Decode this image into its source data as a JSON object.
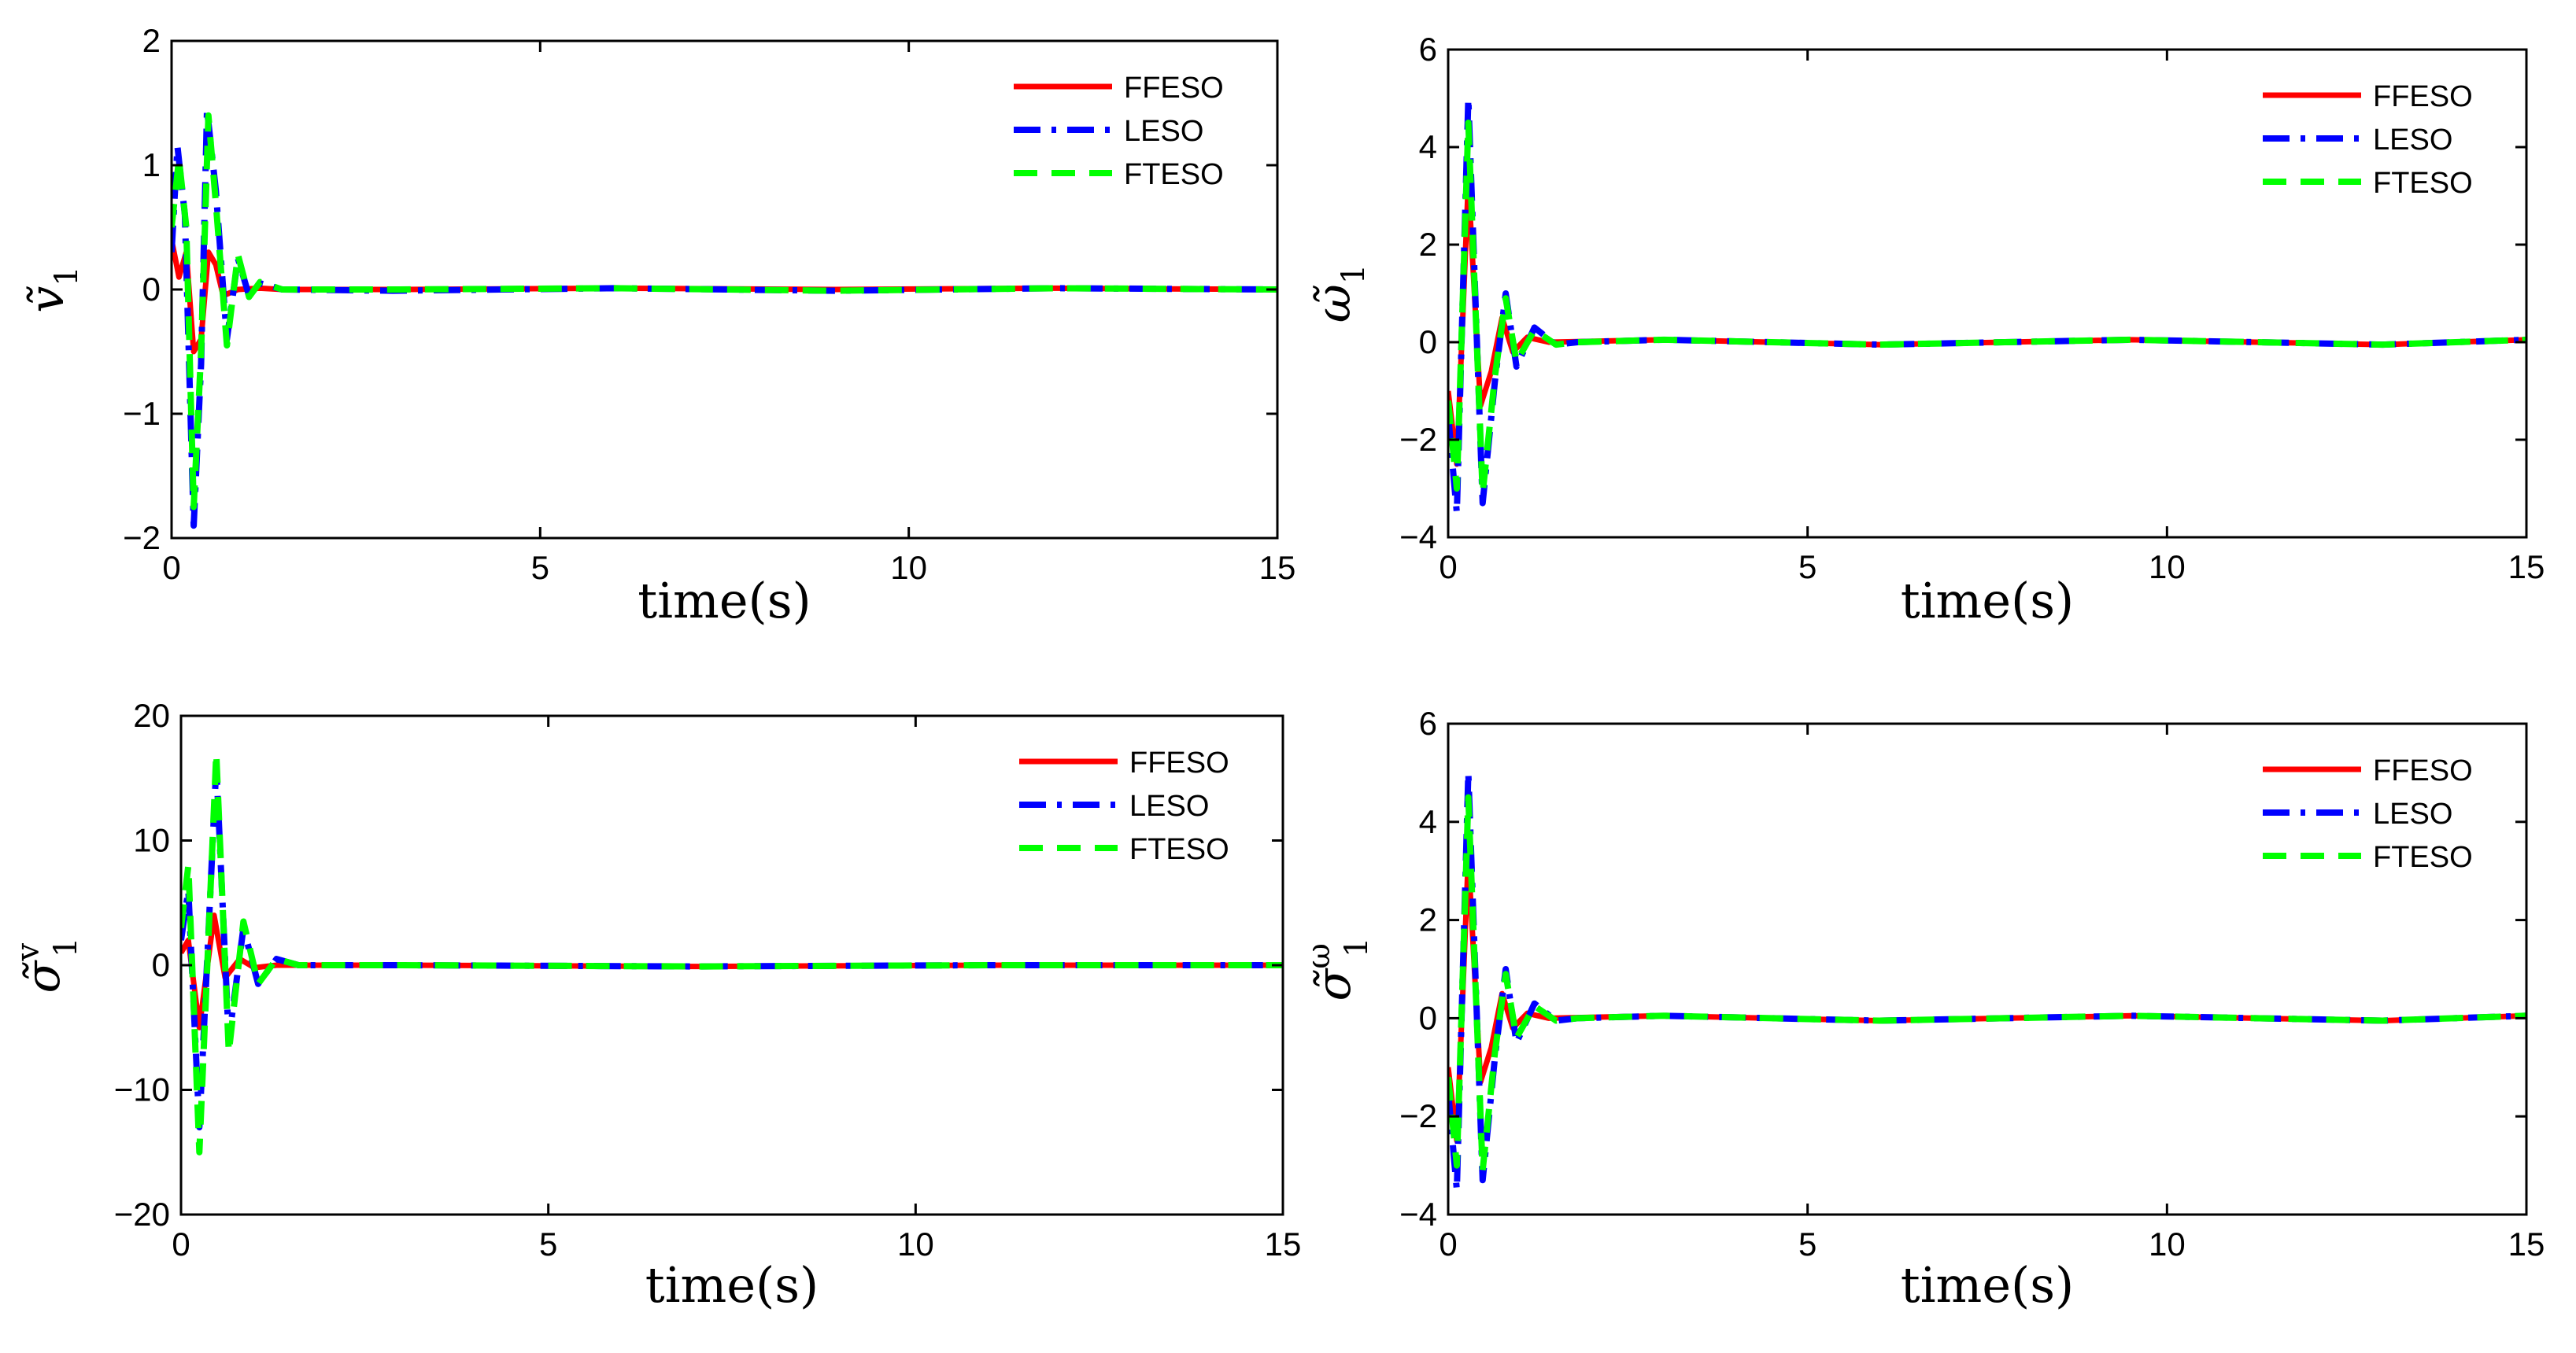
{
  "figure": {
    "description_text": ""
  },
  "colors": {
    "FFESO": "#ff0000",
    "LESO": "#0000ff",
    "FTESO": "#00ff00"
  },
  "chart_data": [
    {
      "type": "line",
      "id": "v1",
      "ylabel_symbol": "ṽ",
      "ylabel_sub": "1",
      "ylabel_sup": "",
      "xlabel": "time(s)",
      "xlim": [
        0,
        15
      ],
      "ylim": [
        -2,
        2
      ],
      "xticks": [
        0,
        5,
        10,
        15
      ],
      "yticks": [
        -2,
        -1,
        0,
        1,
        2
      ],
      "tick_labels_x": [
        "0",
        "5",
        "10",
        "15"
      ],
      "tick_labels_y": [
        "−2",
        "−1",
        "0",
        "1",
        "2"
      ],
      "series": [
        {
          "name": "FFESO",
          "points": [
            [
              0,
              0.4
            ],
            [
              0.1,
              0.1
            ],
            [
              0.2,
              0.3
            ],
            [
              0.3,
              -0.5
            ],
            [
              0.4,
              -0.4
            ],
            [
              0.5,
              0.3
            ],
            [
              0.6,
              0.2
            ],
            [
              0.7,
              -0.05
            ],
            [
              0.9,
              0.0
            ],
            [
              1.2,
              0.01
            ],
            [
              1.5,
              0
            ],
            [
              3,
              0
            ],
            [
              6,
              0.01
            ],
            [
              9,
              0
            ],
            [
              12,
              0.01
            ],
            [
              15,
              0
            ]
          ]
        },
        {
          "name": "LESO",
          "points": [
            [
              0,
              0.3
            ],
            [
              0.08,
              1.15
            ],
            [
              0.18,
              0.6
            ],
            [
              0.3,
              -1.9
            ],
            [
              0.4,
              -0.6
            ],
            [
              0.48,
              1.45
            ],
            [
              0.6,
              0.8
            ],
            [
              0.75,
              -0.4
            ],
            [
              0.9,
              0.25
            ],
            [
              1.05,
              -0.05
            ],
            [
              1.2,
              0.05
            ],
            [
              1.5,
              0
            ],
            [
              3,
              -0.01
            ],
            [
              6,
              0.01
            ],
            [
              9,
              -0.01
            ],
            [
              12,
              0.01
            ],
            [
              15,
              0
            ]
          ]
        },
        {
          "name": "FTESO",
          "points": [
            [
              0,
              0.5
            ],
            [
              0.1,
              1.05
            ],
            [
              0.2,
              0.5
            ],
            [
              0.3,
              -1.75
            ],
            [
              0.4,
              -0.5
            ],
            [
              0.5,
              1.4
            ],
            [
              0.6,
              0.7
            ],
            [
              0.75,
              -0.45
            ],
            [
              0.9,
              0.28
            ],
            [
              1.05,
              -0.06
            ],
            [
              1.2,
              0.06
            ],
            [
              1.5,
              0
            ],
            [
              3,
              0
            ],
            [
              6,
              0.01
            ],
            [
              9,
              -0.01
            ],
            [
              12,
              0.01
            ],
            [
              15,
              0
            ]
          ]
        }
      ],
      "legend": [
        "FFESO",
        "LESO",
        "FTESO"
      ],
      "legend_position": "top-right"
    },
    {
      "type": "line",
      "id": "w1",
      "ylabel_symbol": "ω̃",
      "ylabel_sub": "1",
      "ylabel_sup": "",
      "xlabel": "time(s)",
      "xlim": [
        0,
        15
      ],
      "ylim": [
        -4,
        6
      ],
      "xticks": [
        0,
        5,
        10,
        15
      ],
      "yticks": [
        -4,
        -2,
        0,
        2,
        4,
        6
      ],
      "tick_labels_x": [
        "0",
        "5",
        "10",
        "15"
      ],
      "tick_labels_y": [
        "−4",
        "−2",
        "0",
        "2",
        "4",
        "6"
      ],
      "series": [
        {
          "name": "FFESO",
          "points": [
            [
              0,
              -1.0
            ],
            [
              0.12,
              -2.5
            ],
            [
              0.28,
              3.3
            ],
            [
              0.45,
              -1.3
            ],
            [
              0.6,
              -0.6
            ],
            [
              0.75,
              0.5
            ],
            [
              0.9,
              -0.2
            ],
            [
              1.1,
              0.1
            ],
            [
              1.4,
              0
            ],
            [
              3,
              0.05
            ],
            [
              6,
              -0.05
            ],
            [
              9.5,
              0.05
            ],
            [
              13,
              -0.05
            ],
            [
              15,
              0.05
            ]
          ]
        },
        {
          "name": "LESO",
          "points": [
            [
              0,
              -1.5
            ],
            [
              0.12,
              -3.5
            ],
            [
              0.28,
              5.0
            ],
            [
              0.48,
              -3.3
            ],
            [
              0.65,
              -0.8
            ],
            [
              0.8,
              1.0
            ],
            [
              0.95,
              -0.5
            ],
            [
              1.2,
              0.3
            ],
            [
              1.5,
              -0.05
            ],
            [
              1.8,
              0
            ],
            [
              3,
              0.05
            ],
            [
              6,
              -0.05
            ],
            [
              9.5,
              0.05
            ],
            [
              13,
              -0.05
            ],
            [
              15,
              0.05
            ]
          ]
        },
        {
          "name": "FTESO",
          "points": [
            [
              0,
              -1.2
            ],
            [
              0.12,
              -3.0
            ],
            [
              0.28,
              4.5
            ],
            [
              0.48,
              -3.1
            ],
            [
              0.65,
              -0.7
            ],
            [
              0.8,
              0.9
            ],
            [
              0.95,
              -0.4
            ],
            [
              1.2,
              0.25
            ],
            [
              1.5,
              -0.05
            ],
            [
              1.8,
              0
            ],
            [
              3,
              0.05
            ],
            [
              6,
              -0.05
            ],
            [
              9.5,
              0.05
            ],
            [
              13,
              -0.05
            ],
            [
              15,
              0.05
            ]
          ]
        }
      ],
      "legend": [
        "FFESO",
        "LESO",
        "FTESO"
      ],
      "legend_position": "top-right"
    },
    {
      "type": "line",
      "id": "sv1",
      "ylabel_symbol": "σ̃",
      "ylabel_sub": "1",
      "ylabel_sup": "v",
      "xlabel": "time(s)",
      "xlim": [
        0,
        15
      ],
      "ylim": [
        -20,
        20
      ],
      "xticks": [
        0,
        5,
        10,
        15
      ],
      "yticks": [
        -20,
        -10,
        0,
        10,
        20
      ],
      "tick_labels_x": [
        "0",
        "5",
        "10",
        "15"
      ],
      "tick_labels_y": [
        "−20",
        "−10",
        "0",
        "10",
        "20"
      ],
      "series": [
        {
          "name": "FFESO",
          "points": [
            [
              0,
              1.0
            ],
            [
              0.1,
              2.0
            ],
            [
              0.25,
              -5.0
            ],
            [
              0.45,
              4.0
            ],
            [
              0.6,
              -1.0
            ],
            [
              0.8,
              0.5
            ],
            [
              1.0,
              -0.2
            ],
            [
              1.3,
              0
            ],
            [
              3,
              0
            ],
            [
              7,
              -0.1
            ],
            [
              11,
              0
            ],
            [
              15,
              0
            ]
          ]
        },
        {
          "name": "LESO",
          "points": [
            [
              0,
              2.0
            ],
            [
              0.1,
              6.0
            ],
            [
              0.25,
              -13.0
            ],
            [
              0.48,
              16.0
            ],
            [
              0.65,
              -6.0
            ],
            [
              0.85,
              3.0
            ],
            [
              1.05,
              -1.5
            ],
            [
              1.3,
              0.5
            ],
            [
              1.6,
              0
            ],
            [
              3,
              0
            ],
            [
              7,
              -0.1
            ],
            [
              11,
              0
            ],
            [
              15,
              0
            ]
          ]
        },
        {
          "name": "FTESO",
          "points": [
            [
              0,
              3.0
            ],
            [
              0.1,
              8.0
            ],
            [
              0.25,
              -15.0
            ],
            [
              0.48,
              17.0
            ],
            [
              0.65,
              -7.0
            ],
            [
              0.85,
              3.5
            ],
            [
              1.05,
              -1.5
            ],
            [
              1.3,
              0.5
            ],
            [
              1.6,
              0
            ],
            [
              3,
              0
            ],
            [
              7,
              -0.1
            ],
            [
              11,
              0
            ],
            [
              15,
              0
            ]
          ]
        }
      ],
      "legend": [
        "FFESO",
        "LESO",
        "FTESO"
      ],
      "legend_position": "top-right"
    },
    {
      "type": "line",
      "id": "sw1",
      "ylabel_symbol": "σ̃",
      "ylabel_sub": "1",
      "ylabel_sup": "ω",
      "xlabel": "time(s)",
      "xlim": [
        0,
        15
      ],
      "ylim": [
        -4,
        6
      ],
      "xticks": [
        0,
        5,
        10,
        15
      ],
      "yticks": [
        -4,
        -2,
        0,
        2,
        4,
        6
      ],
      "tick_labels_x": [
        "0",
        "5",
        "10",
        "15"
      ],
      "tick_labels_y": [
        "−4",
        "−2",
        "0",
        "2",
        "4",
        "6"
      ],
      "series": [
        {
          "name": "FFESO",
          "points": [
            [
              0,
              -1.0
            ],
            [
              0.12,
              -2.5
            ],
            [
              0.28,
              3.3
            ],
            [
              0.45,
              -1.3
            ],
            [
              0.6,
              -0.6
            ],
            [
              0.75,
              0.5
            ],
            [
              0.9,
              -0.2
            ],
            [
              1.1,
              0.1
            ],
            [
              1.4,
              0
            ],
            [
              3,
              0.05
            ],
            [
              6,
              -0.05
            ],
            [
              9.5,
              0.05
            ],
            [
              13,
              -0.05
            ],
            [
              15,
              0.05
            ]
          ]
        },
        {
          "name": "LESO",
          "points": [
            [
              0,
              -1.5
            ],
            [
              0.12,
              -3.5
            ],
            [
              0.28,
              5.0
            ],
            [
              0.48,
              -3.3
            ],
            [
              0.65,
              -0.8
            ],
            [
              0.8,
              1.0
            ],
            [
              0.95,
              -0.5
            ],
            [
              1.2,
              0.3
            ],
            [
              1.5,
              -0.05
            ],
            [
              1.8,
              0
            ],
            [
              3,
              0.05
            ],
            [
              6,
              -0.05
            ],
            [
              9.5,
              0.05
            ],
            [
              13,
              -0.05
            ],
            [
              15,
              0.05
            ]
          ]
        },
        {
          "name": "FTESO",
          "points": [
            [
              0,
              -1.2
            ],
            [
              0.12,
              -3.0
            ],
            [
              0.28,
              4.5
            ],
            [
              0.48,
              -3.1
            ],
            [
              0.65,
              -0.7
            ],
            [
              0.8,
              0.9
            ],
            [
              0.95,
              -0.4
            ],
            [
              1.2,
              0.25
            ],
            [
              1.5,
              -0.05
            ],
            [
              1.8,
              0
            ],
            [
              3,
              0.05
            ],
            [
              6,
              -0.05
            ],
            [
              9.5,
              0.05
            ],
            [
              13,
              -0.05
            ],
            [
              15,
              0.05
            ]
          ]
        }
      ],
      "legend": [
        "FFESO",
        "LESO",
        "FTESO"
      ],
      "legend_position": "top-right"
    }
  ]
}
